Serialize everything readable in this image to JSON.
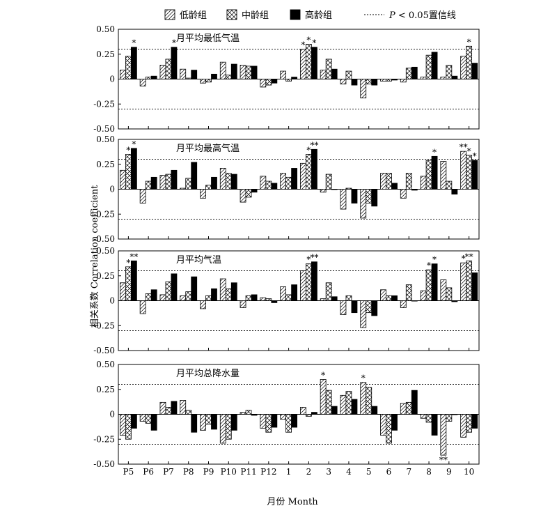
{
  "legend": {
    "items": [
      {
        "label": "低龄组",
        "pattern": "diagonal"
      },
      {
        "label": "中龄组",
        "pattern": "crosshatch"
      },
      {
        "label": "高龄组",
        "pattern": "solid"
      }
    ],
    "line_label_p": "P",
    "line_label_rest": " < 0.05置信线"
  },
  "y_axis_label": "相关系数 Correlation coefficient",
  "x_axis_label": "月份 Month",
  "chart_data": [
    {
      "type": "bar",
      "title": "月平均最低气温",
      "categories": [
        "P5",
        "P6",
        "P7",
        "P8",
        "P9",
        "P10",
        "P11",
        "P12",
        "1",
        "2",
        "3",
        "4",
        "5",
        "6",
        "7",
        "8",
        "9",
        "10"
      ],
      "ylim": [
        -0.5,
        0.5
      ],
      "yticks": [
        "0.50",
        "0.25",
        "0",
        "-0.25",
        "-0.50"
      ],
      "confidence_line": 0.3,
      "series": [
        {
          "name": "低龄组",
          "values": [
            0.09,
            -0.07,
            0.14,
            0.1,
            -0.04,
            0.17,
            0.14,
            -0.08,
            0.08,
            0.3,
            0.09,
            -0.05,
            -0.19,
            -0.02,
            -0.03,
            0.02,
            0.02,
            0.23
          ]
        },
        {
          "name": "中龄组",
          "values": [
            0.23,
            0.02,
            0.2,
            0.01,
            -0.03,
            0.04,
            0.13,
            -0.06,
            -0.02,
            0.35,
            0.2,
            0.08,
            -0.05,
            -0.02,
            0.11,
            0.24,
            0.14,
            0.33
          ]
        },
        {
          "name": "高龄组",
          "values": [
            0.32,
            0.03,
            0.32,
            0.09,
            0.05,
            0.15,
            0.13,
            -0.04,
            0.02,
            0.32,
            0.1,
            -0.06,
            -0.06,
            -0.01,
            0.12,
            0.27,
            0.03,
            0.16
          ]
        }
      ],
      "significance": [
        {
          "label": "*",
          "x": "P5",
          "series": 2
        },
        {
          "label": "*",
          "x": "P7",
          "series": 2
        },
        {
          "label": "*",
          "x": "2",
          "series": 0
        },
        {
          "label": "*",
          "x": "2",
          "series": 1
        },
        {
          "label": "*",
          "x": "2",
          "series": 2
        },
        {
          "label": "*",
          "x": "10",
          "series": 1
        }
      ]
    },
    {
      "type": "bar",
      "title": "月平均最高气温",
      "categories": [
        "P5",
        "P6",
        "P7",
        "P8",
        "P9",
        "P10",
        "P11",
        "P12",
        "1",
        "2",
        "3",
        "4",
        "5",
        "6",
        "7",
        "8",
        "9",
        "10"
      ],
      "ylim": [
        -0.5,
        0.5
      ],
      "yticks": [
        "0.50",
        "0.25",
        "0",
        "-0.25",
        "-0.50"
      ],
      "confidence_line": 0.3,
      "series": [
        {
          "name": "低龄组",
          "values": [
            0.19,
            -0.14,
            0.14,
            0.01,
            -0.09,
            0.21,
            -0.13,
            0.13,
            0.16,
            0.26,
            -0.03,
            -0.2,
            -0.29,
            0.16,
            -0.09,
            0.13,
            0.28,
            0.38
          ]
        },
        {
          "name": "中龄组",
          "values": [
            0.35,
            0.08,
            0.15,
            0.11,
            0.04,
            0.16,
            -0.08,
            0.08,
            0.12,
            0.35,
            0.15,
            0.01,
            -0.14,
            0.16,
            0.16,
            0.29,
            0.08,
            0.34
          ]
        },
        {
          "name": "高龄组",
          "values": [
            0.41,
            0.12,
            0.19,
            0.27,
            0.12,
            0.15,
            -0.03,
            0.06,
            0.21,
            0.4,
            0.0,
            -0.14,
            -0.17,
            0.06,
            -0.01,
            0.33,
            -0.05,
            0.29
          ]
        }
      ],
      "significance": [
        {
          "label": "*",
          "x": "P5",
          "series": 1
        },
        {
          "label": "*",
          "x": "P5",
          "series": 2
        },
        {
          "label": "*",
          "x": "2",
          "series": 1
        },
        {
          "label": "**",
          "x": "2",
          "series": 2
        },
        {
          "label": "*",
          "x": "8",
          "series": 2
        },
        {
          "label": "**",
          "x": "10",
          "series": 0
        },
        {
          "label": "*",
          "x": "10",
          "series": 1
        },
        {
          "label": "*",
          "x": "10",
          "series": 2
        }
      ]
    },
    {
      "type": "bar",
      "title": "月平均气温",
      "categories": [
        "P5",
        "P6",
        "P7",
        "P8",
        "P9",
        "P10",
        "P11",
        "P12",
        "1",
        "2",
        "3",
        "4",
        "5",
        "6",
        "7",
        "8",
        "9",
        "10"
      ],
      "ylim": [
        -0.5,
        0.5
      ],
      "yticks": [
        "0.50",
        "0.25",
        "0",
        "-0.25",
        "-0.50"
      ],
      "confidence_line": 0.3,
      "series": [
        {
          "name": "低龄组",
          "values": [
            0.18,
            -0.13,
            0.06,
            0.05,
            -0.08,
            0.22,
            -0.07,
            0.03,
            0.14,
            0.3,
            0.02,
            -0.14,
            -0.27,
            0.11,
            -0.07,
            0.1,
            0.21,
            0.38
          ]
        },
        {
          "name": "中龄组",
          "values": [
            0.34,
            0.07,
            0.19,
            0.09,
            0.05,
            0.12,
            0.05,
            0.02,
            0.06,
            0.37,
            0.18,
            0.05,
            -0.12,
            0.05,
            0.16,
            0.31,
            0.13,
            0.4
          ]
        },
        {
          "name": "高龄组",
          "values": [
            0.4,
            0.11,
            0.27,
            0.24,
            0.12,
            0.18,
            0.06,
            -0.02,
            0.16,
            0.39,
            0.04,
            -0.12,
            -0.15,
            0.05,
            0.0,
            0.37,
            -0.01,
            0.28
          ]
        }
      ],
      "significance": [
        {
          "label": "*",
          "x": "P5",
          "series": 1
        },
        {
          "label": "**",
          "x": "P5",
          "series": 2
        },
        {
          "label": "*",
          "x": "2",
          "series": 1
        },
        {
          "label": "**",
          "x": "2",
          "series": 2
        },
        {
          "label": "*",
          "x": "8",
          "series": 1
        },
        {
          "label": "*",
          "x": "8",
          "series": 2
        },
        {
          "label": "*",
          "x": "10",
          "series": 0
        },
        {
          "label": "**",
          "x": "10",
          "series": 1
        }
      ]
    },
    {
      "type": "bar",
      "title": "月平均总降水量",
      "categories": [
        "P5",
        "P6",
        "P7",
        "P8",
        "P9",
        "P10",
        "P11",
        "P12",
        "1",
        "2",
        "3",
        "4",
        "5",
        "6",
        "7",
        "8",
        "9",
        "10"
      ],
      "ylim": [
        -0.5,
        0.5
      ],
      "yticks": [
        "0.50",
        "0.25",
        "0",
        "-0.25",
        "-0.50"
      ],
      "confidence_line": 0.3,
      "series": [
        {
          "name": "低龄组",
          "values": [
            -0.21,
            -0.07,
            0.12,
            0.14,
            -0.16,
            -0.29,
            0.02,
            -0.14,
            -0.05,
            0.07,
            0.35,
            0.19,
            0.32,
            -0.21,
            0.11,
            -0.04,
            -0.41,
            -0.23
          ]
        },
        {
          "name": "中龄组",
          "values": [
            -0.25,
            -0.09,
            0.07,
            0.04,
            -0.1,
            -0.25,
            0.04,
            -0.18,
            -0.18,
            -0.02,
            0.24,
            0.23,
            0.27,
            -0.29,
            0.12,
            -0.08,
            -0.07,
            -0.18
          ]
        },
        {
          "name": "高龄组",
          "values": [
            -0.14,
            -0.16,
            0.13,
            -0.18,
            -0.15,
            -0.16,
            -0.01,
            -0.13,
            -0.13,
            0.02,
            0.08,
            0.15,
            0.08,
            -0.16,
            0.24,
            -0.21,
            0.0,
            -0.14
          ]
        }
      ],
      "significance": [
        {
          "label": "*",
          "x": "3",
          "series": 0
        },
        {
          "label": "*",
          "x": "5",
          "series": 0
        },
        {
          "label": "**",
          "x": "9",
          "series": 0
        }
      ]
    }
  ]
}
